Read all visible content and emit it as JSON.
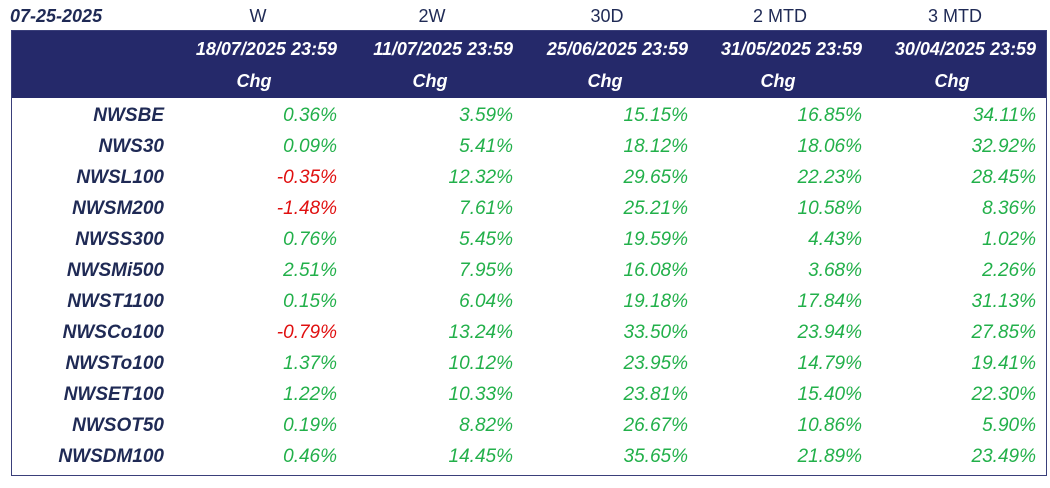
{
  "report_date": "07-25-2025",
  "colors": {
    "header_bg": "#25296a",
    "positive": "#22b04a",
    "negative": "#e01010",
    "name": "#1f2a55"
  },
  "columns": [
    {
      "period": "W",
      "date": "18/07/2025 23:59",
      "sub": "Chg"
    },
    {
      "period": "2W",
      "date": "11/07/2025 23:59",
      "sub": "Chg"
    },
    {
      "period": "30D",
      "date": "25/06/2025 23:59",
      "sub": "Chg"
    },
    {
      "period": "2 MTD",
      "date": "31/05/2025 23:59",
      "sub": "Chg"
    },
    {
      "period": "3 MTD",
      "date": "30/04/2025 23:59",
      "sub": "Chg"
    }
  ],
  "rows": [
    {
      "name": "NWSBE",
      "values": [
        "0.36%",
        "3.59%",
        "15.15%",
        "16.85%",
        "34.11%"
      ]
    },
    {
      "name": "NWS30",
      "values": [
        "0.09%",
        "5.41%",
        "18.12%",
        "18.06%",
        "32.92%"
      ]
    },
    {
      "name": "NWSL100",
      "values": [
        "-0.35%",
        "12.32%",
        "29.65%",
        "22.23%",
        "28.45%"
      ]
    },
    {
      "name": "NWSM200",
      "values": [
        "-1.48%",
        "7.61%",
        "25.21%",
        "10.58%",
        "8.36%"
      ]
    },
    {
      "name": "NWSS300",
      "values": [
        "0.76%",
        "5.45%",
        "19.59%",
        "4.43%",
        "1.02%"
      ]
    },
    {
      "name": "NWSMi500",
      "values": [
        "2.51%",
        "7.95%",
        "16.08%",
        "3.68%",
        "2.26%"
      ]
    },
    {
      "name": "NWST1100",
      "values": [
        "0.15%",
        "6.04%",
        "19.18%",
        "17.84%",
        "31.13%"
      ]
    },
    {
      "name": "NWSCo100",
      "values": [
        "-0.79%",
        "13.24%",
        "33.50%",
        "23.94%",
        "27.85%"
      ]
    },
    {
      "name": "NWSTo100",
      "values": [
        "1.37%",
        "10.12%",
        "23.95%",
        "14.79%",
        "19.41%"
      ]
    },
    {
      "name": "NWSET100",
      "values": [
        "1.22%",
        "10.33%",
        "23.81%",
        "15.40%",
        "22.30%"
      ]
    },
    {
      "name": "NWSOT50",
      "values": [
        "0.19%",
        "8.82%",
        "26.67%",
        "10.86%",
        "5.90%"
      ]
    },
    {
      "name": "NWSDM100",
      "values": [
        "0.46%",
        "14.45%",
        "35.65%",
        "21.89%",
        "23.49%"
      ]
    }
  ]
}
